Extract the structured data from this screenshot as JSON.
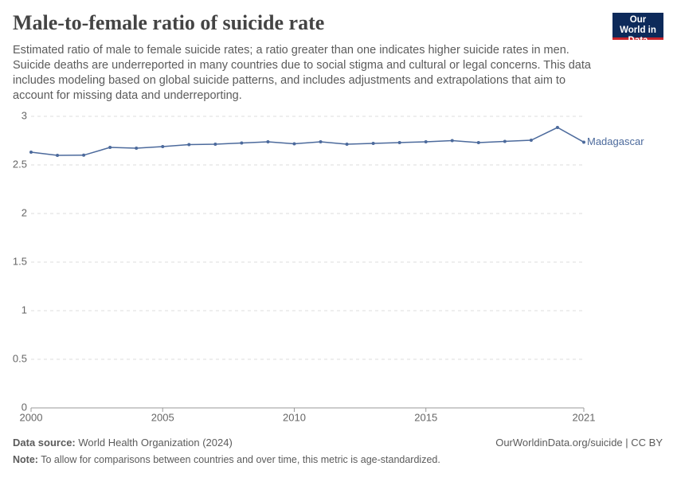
{
  "title": "Male-to-female ratio of suicide rate",
  "subtitle": "Estimated ratio of male to female suicide rates; a ratio greater than one indicates higher suicide rates in men. Suicide deaths are underreported in many countries due to social stigma and cultural or legal concerns. This data includes modeling based on global suicide patterns, and includes adjustments and extrapolations that aim to account for missing data and underreporting.",
  "logo": "Our World in Data",
  "source_label": "Data source:",
  "source": "World Health Organization (2024)",
  "url": "OurWorldinData.org/suicide | CC BY",
  "note_label": "Note:",
  "note": "To allow for comparisons between countries and over time, this metric is age-standardized.",
  "chart_data": {
    "type": "line",
    "x": [
      2000,
      2001,
      2002,
      2003,
      2004,
      2005,
      2006,
      2007,
      2008,
      2009,
      2010,
      2011,
      2012,
      2013,
      2014,
      2015,
      2016,
      2017,
      2018,
      2019,
      2020,
      2021
    ],
    "series": [
      {
        "name": "Madagascar",
        "color": "#4c6a9c",
        "values": [
          2.631,
          2.598,
          2.6,
          2.68,
          2.672,
          2.689,
          2.709,
          2.713,
          2.725,
          2.738,
          2.717,
          2.738,
          2.713,
          2.721,
          2.73,
          2.738,
          2.75,
          2.73,
          2.742,
          2.754,
          2.885,
          2.734
        ]
      }
    ],
    "xlim": [
      2000,
      2021
    ],
    "xticks": [
      2000,
      2005,
      2010,
      2015,
      2021
    ],
    "ylim": [
      0,
      3
    ],
    "yticks": [
      0,
      0.5,
      1,
      1.5,
      2,
      2.5,
      3
    ],
    "grid": true
  }
}
